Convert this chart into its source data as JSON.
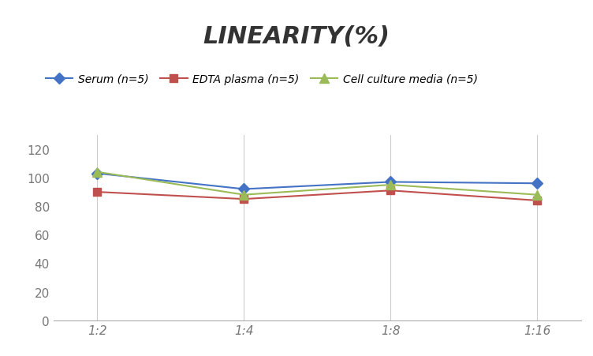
{
  "title": "LINEARITY(%)",
  "title_fontstyle": "italic",
  "title_fontsize": 22,
  "title_fontweight": "bold",
  "title_color": "#333333",
  "x_labels": [
    "1:2",
    "1:4",
    "1:8",
    "1:16"
  ],
  "x_values": [
    0,
    1,
    2,
    3
  ],
  "series": [
    {
      "label": "Serum (n=5)",
      "values": [
        103,
        92,
        97,
        96
      ],
      "color": "#4472C4",
      "marker": "D",
      "marker_size": 7,
      "linewidth": 1.5
    },
    {
      "label": "EDTA plasma (n=5)",
      "values": [
        90,
        85,
        91,
        84
      ],
      "color": "#C0504D",
      "marker": "s",
      "marker_size": 7,
      "linewidth": 1.5
    },
    {
      "label": "Cell culture media (n=5)",
      "values": [
        104,
        88,
        95,
        88
      ],
      "color": "#9BBB59",
      "marker": "^",
      "marker_size": 8,
      "linewidth": 1.5
    }
  ],
  "ylim": [
    0,
    130
  ],
  "yticks": [
    0,
    20,
    40,
    60,
    80,
    100,
    120
  ],
  "grid_color": "#CCCCCC",
  "background_color": "#FFFFFF",
  "legend_fontsize": 10,
  "tick_label_color": "#777777",
  "tick_fontsize": 11
}
